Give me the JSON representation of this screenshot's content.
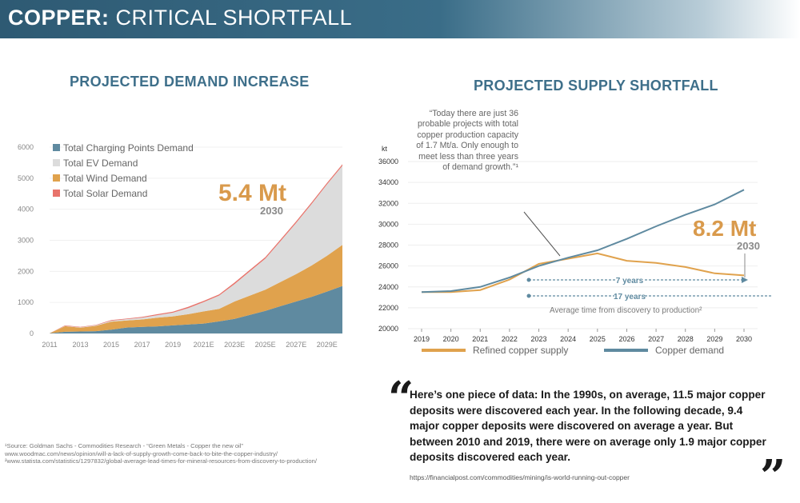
{
  "banner": {
    "title_bold": "COPPER:",
    "title_rest": " CRITICAL SHORTFALL"
  },
  "left_chart_title": "PROJECTED DEMAND INCREASE",
  "right_chart_title": "PROJECTED SUPPLY SHORTFALL",
  "left_annotation": {
    "value": "5.4 Mt",
    "year": "2030"
  },
  "right_annotation": {
    "value": "8.2 Mt",
    "year": "2030"
  },
  "supply_quote": "“Today there are just 36 probable projects with total copper production capacity of 1.7 Mt/a. Only enough to meet less than three years of demand growth.”¹",
  "arrows": {
    "seven": "7 years",
    "seventeen": "17 years",
    "caption": "Average time from discovery to production²"
  },
  "quote": {
    "text": "Here’s one piece of data: In the 1990s, on average, 11.5 major copper deposits were discovered each year. In the following decade, 9.4 major copper deposits were discovered on average a year. But between 2010 and 2019, there were on average only 1.9 major copper deposits discovered each year.",
    "source": "https://financialpost.com/commodities/mining/is-world-running-out-copper"
  },
  "sources": [
    "¹Source: Goldman Sachs - Commodities Research - “Green Metals - Copper the new oil”",
    " www.woodmac.com/news/opinion/will-a-lack-of-supply-growth-come-back-to-bite-the-copper-industry/",
    "²www.statista.com/statistics/1297832/global-average-lead-times-for-mineral-resources-from-discovery-to-production/"
  ],
  "colors": {
    "charging": "#5f8aa0",
    "ev": "#dcdcdc",
    "wind": "#e0a24d",
    "solar": "#e8736b",
    "supply": "#e0a24d",
    "demand": "#5f8aa0",
    "accent_orange": "#d99a4c",
    "title_blue": "#3e6f8a"
  },
  "chart_data": [
    {
      "type": "area",
      "stacked": true,
      "x": [
        "2011",
        "2012",
        "2013",
        "2014",
        "2015",
        "2016",
        "2017",
        "2018",
        "2019",
        "2020",
        "2021E",
        "2022E",
        "2023E",
        "2024E",
        "2025E",
        "2026E",
        "2027E",
        "2028E",
        "2029E",
        "2030E"
      ],
      "x_tick_labels": [
        "2011",
        "2013",
        "2015",
        "2017",
        "2019",
        "2021E",
        "2023E",
        "2025E",
        "2027E",
        "2029E"
      ],
      "ylim": [
        0,
        6000
      ],
      "y_ticks": [
        0,
        1000,
        2000,
        3000,
        4000,
        5000,
        6000
      ],
      "legend_position": "top-left",
      "series": [
        {
          "name": "Total Charging Points Demand",
          "values": [
            5,
            55,
            65,
            75,
            120,
            190,
            210,
            230,
            260,
            290,
            320,
            390,
            470,
            600,
            730,
            880,
            1030,
            1180,
            1350,
            1530
          ]
        },
        {
          "name": "Total EV Demand",
          "values": [
            0,
            10,
            12,
            18,
            30,
            40,
            60,
            80,
            120,
            200,
            300,
            430,
            560,
            780,
            1000,
            1320,
            1650,
            1980,
            2300,
            2550
          ]
        },
        {
          "name": "Total Wind Demand",
          "values": [
            0,
            180,
            120,
            170,
            260,
            230,
            240,
            280,
            290,
            330,
            390,
            400,
            560,
            620,
            680,
            780,
            880,
            1010,
            1150,
            1320
          ]
        },
        {
          "name": "Total Solar Demand",
          "values": [
            0,
            15,
            15,
            15,
            20,
            20,
            25,
            30,
            30,
            40,
            40,
            40,
            50,
            50,
            50,
            50,
            50,
            50,
            50,
            50
          ]
        }
      ]
    },
    {
      "type": "line",
      "x": [
        "2019",
        "2020",
        "2021",
        "2022",
        "2023",
        "2024",
        "2025",
        "2026",
        "2027",
        "2028",
        "2029",
        "2030"
      ],
      "ylabel": "kt",
      "ylim": [
        20000,
        36000
      ],
      "y_ticks": [
        20000,
        22000,
        24000,
        26000,
        28000,
        30000,
        32000,
        34000,
        36000
      ],
      "legend_position": "bottom",
      "series": [
        {
          "name": "Refined copper supply",
          "values": [
            23500,
            23500,
            23700,
            24700,
            26200,
            26700,
            27200,
            26500,
            26300,
            25900,
            25300,
            25100
          ]
        },
        {
          "name": "Copper demand",
          "values": [
            23500,
            23600,
            24000,
            24900,
            26000,
            26800,
            27500,
            28600,
            29800,
            30900,
            31900,
            33300
          ]
        }
      ]
    }
  ]
}
